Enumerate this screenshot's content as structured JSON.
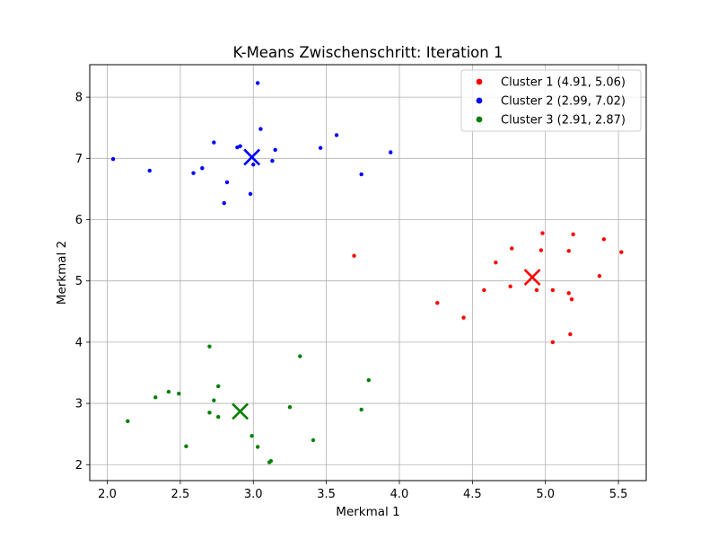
{
  "chart_data": {
    "type": "scatter",
    "title": "K-Means Zwischenschritt: Iteration 1",
    "xlabel": "Merkmal 1",
    "ylabel": "Merkmal 2",
    "xlim": [
      1.88,
      5.69
    ],
    "ylim": [
      1.74,
      8.53
    ],
    "xticks": [
      2.0,
      2.5,
      3.0,
      3.5,
      4.0,
      4.5,
      5.0,
      5.5
    ],
    "xtick_labels": [
      "2.0",
      "2.5",
      "3.0",
      "3.5",
      "4.0",
      "4.5",
      "5.0",
      "5.5"
    ],
    "yticks": [
      2,
      3,
      4,
      5,
      6,
      7,
      8
    ],
    "ytick_labels": [
      "2",
      "3",
      "4",
      "5",
      "6",
      "7",
      "8"
    ],
    "grid": true,
    "legend_position": "top-right",
    "series": [
      {
        "name": "Cluster 1 (4.91, 5.06)",
        "color": "#ff0000",
        "centroid": [
          4.91,
          5.06
        ],
        "points": [
          [
            4.98,
            5.78
          ],
          [
            5.19,
            5.76
          ],
          [
            5.4,
            5.68
          ],
          [
            4.77,
            5.53
          ],
          [
            4.97,
            5.5
          ],
          [
            5.16,
            5.49
          ],
          [
            5.52,
            5.47
          ],
          [
            4.66,
            5.3
          ],
          [
            5.37,
            5.08
          ],
          [
            4.76,
            4.91
          ],
          [
            4.94,
            4.85
          ],
          [
            5.05,
            4.85
          ],
          [
            4.58,
            4.85
          ],
          [
            5.16,
            4.8
          ],
          [
            5.18,
            4.7
          ],
          [
            4.26,
            4.64
          ],
          [
            4.44,
            4.4
          ],
          [
            5.17,
            4.13
          ],
          [
            5.05,
            4.0
          ],
          [
            3.69,
            5.41
          ]
        ]
      },
      {
        "name": "Cluster 2 (2.99, 7.02)",
        "color": "#0000ff",
        "centroid": [
          2.99,
          7.02
        ],
        "points": [
          [
            3.03,
            8.23
          ],
          [
            3.05,
            7.48
          ],
          [
            3.57,
            7.38
          ],
          [
            2.73,
            7.26
          ],
          [
            2.91,
            7.2
          ],
          [
            2.89,
            7.18
          ],
          [
            3.46,
            7.17
          ],
          [
            3.15,
            7.14
          ],
          [
            3.94,
            7.1
          ],
          [
            2.04,
            6.99
          ],
          [
            3.13,
            6.96
          ],
          [
            3.0,
            6.9
          ],
          [
            2.65,
            6.84
          ],
          [
            2.29,
            6.8
          ],
          [
            2.59,
            6.76
          ],
          [
            3.74,
            6.74
          ],
          [
            2.82,
            6.61
          ],
          [
            2.98,
            6.42
          ],
          [
            2.8,
            6.27
          ]
        ]
      },
      {
        "name": "Cluster 3 (2.91, 2.87)",
        "color": "#008000",
        "centroid": [
          2.91,
          2.87
        ],
        "points": [
          [
            2.7,
            3.93
          ],
          [
            3.32,
            3.77
          ],
          [
            3.79,
            3.38
          ],
          [
            2.76,
            3.28
          ],
          [
            2.42,
            3.19
          ],
          [
            2.49,
            3.16
          ],
          [
            2.33,
            3.1
          ],
          [
            2.73,
            3.05
          ],
          [
            3.25,
            2.94
          ],
          [
            3.74,
            2.9
          ],
          [
            2.7,
            2.85
          ],
          [
            2.76,
            2.78
          ],
          [
            2.14,
            2.71
          ],
          [
            2.99,
            2.47
          ],
          [
            3.41,
            2.4
          ],
          [
            2.54,
            2.3
          ],
          [
            3.03,
            2.29
          ],
          [
            3.12,
            2.06
          ],
          [
            3.11,
            2.04
          ]
        ]
      }
    ]
  }
}
